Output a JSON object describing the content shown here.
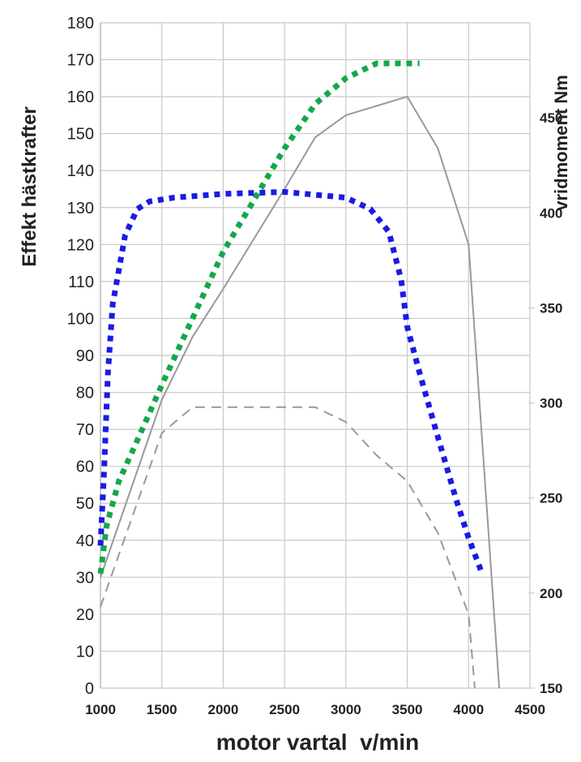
{
  "chart_data": {
    "type": "line",
    "xlabel": "motor vartal  v/min",
    "ylabel_left": "Effekt hästkrafter",
    "ylabel_right": "vridmoment Nm",
    "x_ticks": [
      1000,
      1500,
      2000,
      2500,
      3000,
      3500,
      4000,
      4500
    ],
    "y_left_ticks": [
      0,
      10,
      20,
      30,
      40,
      50,
      60,
      70,
      80,
      90,
      100,
      110,
      120,
      130,
      140,
      150,
      160,
      170,
      180
    ],
    "y_left_tick_labels": [
      "0",
      "10",
      "20",
      "30",
      "40",
      "50",
      "60",
      "70",
      "80",
      "90",
      "100",
      "110",
      "120",
      "130",
      "140",
      "150",
      "160",
      "170",
      "180"
    ],
    "y_right_ticks": [
      150,
      200,
      250,
      300,
      350,
      400,
      450
    ],
    "y_right_tick_labels": [
      "150",
      "200",
      "250",
      "300",
      "350",
      "400",
      "450"
    ],
    "xlim": [
      1000,
      4500
    ],
    "ylim_left": [
      0,
      180
    ],
    "ylim_right": [
      150,
      500
    ],
    "grid": true,
    "series": [
      {
        "axis": "left",
        "color": "#999999",
        "style": "solid",
        "x": [
          1000,
          1500,
          1750,
          2000,
          2500,
          2750,
          3000,
          3500,
          3750,
          4000,
          4250
        ],
        "values": [
          30,
          78,
          95,
          108,
          135,
          149,
          155,
          160,
          146,
          120,
          0
        ]
      },
      {
        "axis": "left",
        "color": "#999999",
        "style": "dashed",
        "x": [
          1000,
          1500,
          1750,
          2000,
          2500,
          2750,
          3000,
          3250,
          3500,
          3750,
          4000,
          4050
        ],
        "values": [
          22,
          69,
          76,
          76,
          76,
          76,
          72,
          63,
          56,
          42,
          20,
          0
        ]
      },
      {
        "axis": "left",
        "color": "#13a84a",
        "style": "dotted",
        "x": [
          1000,
          1050,
          1150,
          1300,
          1500,
          1750,
          2000,
          2250,
          2500,
          2750,
          3000,
          3250,
          3400,
          3600
        ],
        "values": [
          31,
          44,
          56,
          67,
          82,
          100,
          118,
          132,
          146,
          158,
          165,
          169,
          169,
          169
        ]
      },
      {
        "axis": "right",
        "color": "#1a1ae6",
        "style": "dotted",
        "x": [
          1000,
          1030,
          1060,
          1100,
          1200,
          1300,
          1400,
          1600,
          2000,
          2500,
          3000,
          3200,
          3350,
          3450,
          3500,
          3600,
          3750,
          3900,
          4000,
          4100
        ],
        "values": [
          225,
          265,
          315,
          352,
          388,
          402,
          406,
          408,
          410,
          411,
          408,
          402,
          390,
          365,
          340,
          316,
          282,
          249,
          229,
          212
        ]
      }
    ]
  }
}
